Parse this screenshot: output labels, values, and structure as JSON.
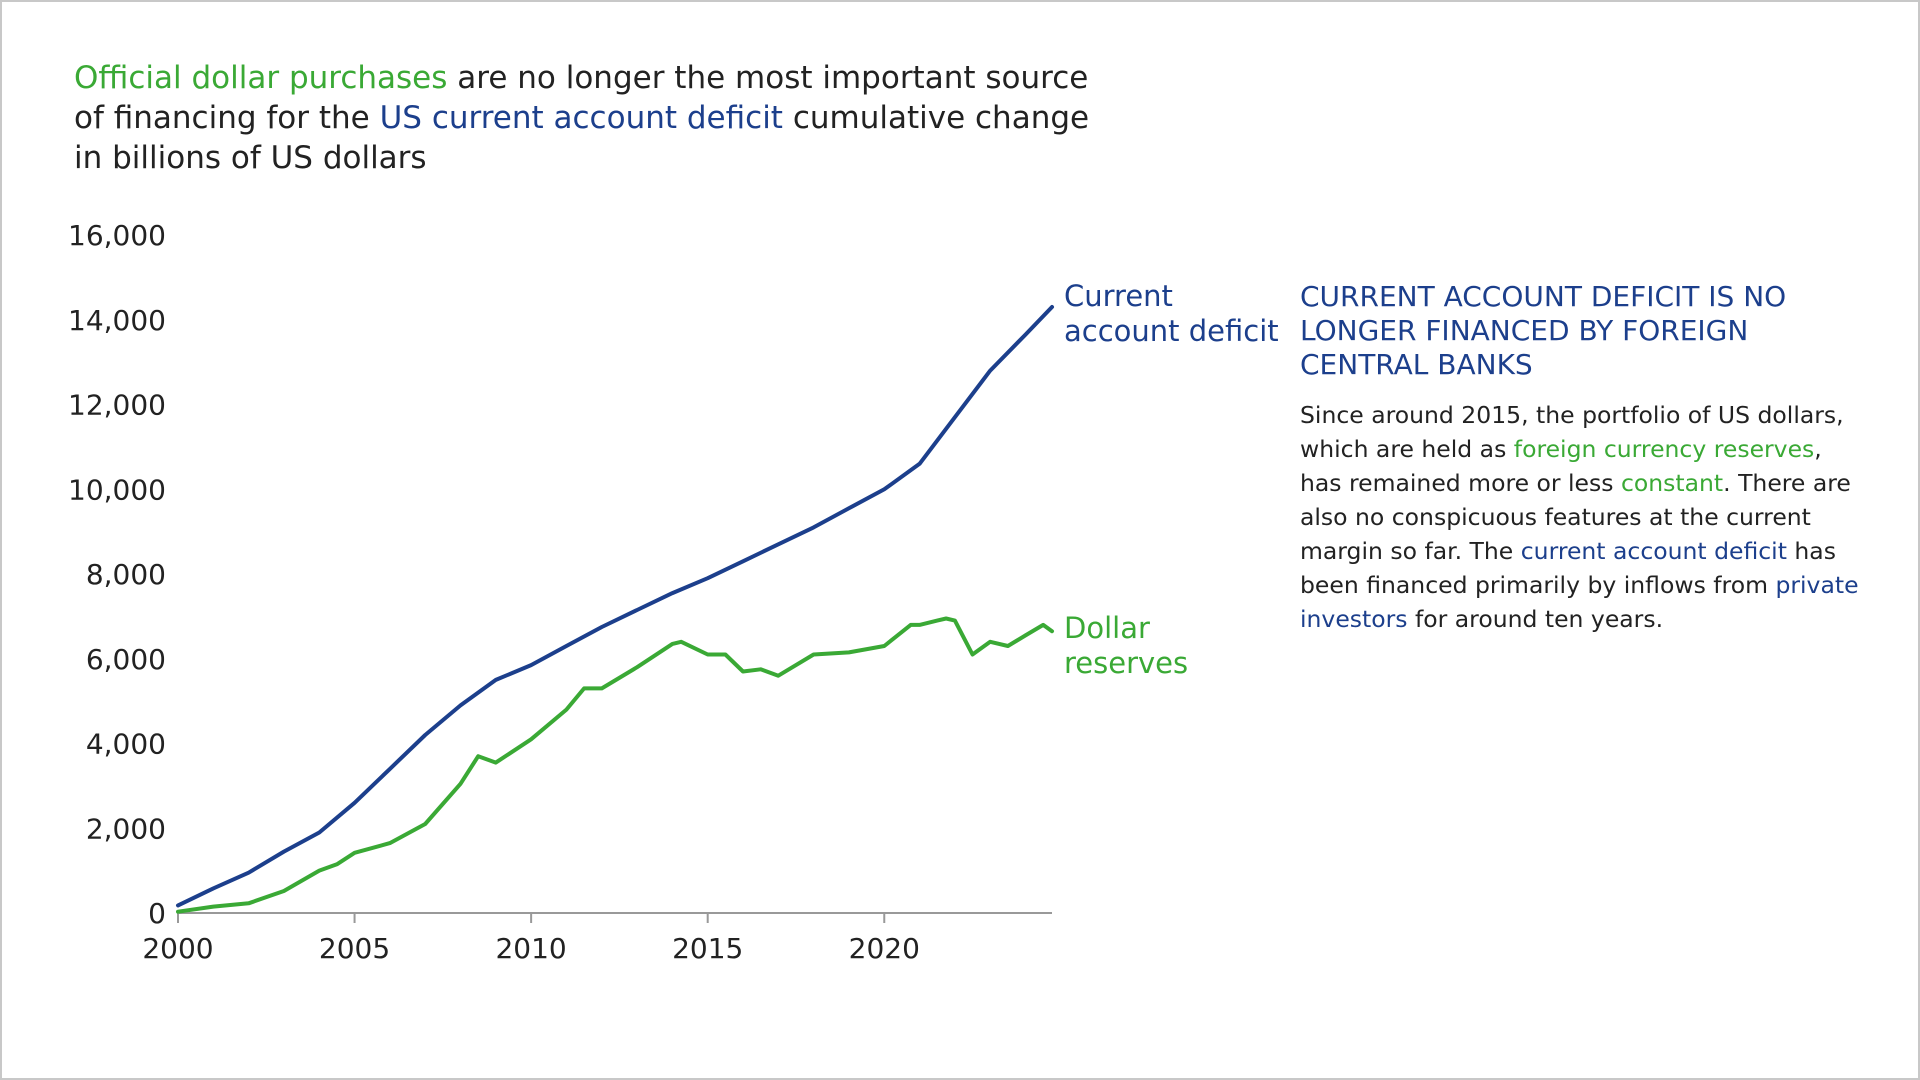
{
  "title": {
    "part1": "Official dollar purchases",
    "part2": " are no longer the most important source of financing for the ",
    "part3": "US current account deficit",
    "part4": " cumulative change in billions of US dollars"
  },
  "side_panel": {
    "heading": "CURRENT ACCOUNT DEFICIT IS NO LONGER FINANCED BY FOREIGN CENTRAL BANKS",
    "body": {
      "t1": "Since around 2015, the portfolio of US dollars, which are held as ",
      "g1": "foreign currency reserves",
      "t2": ", has remained more or less ",
      "g2": "constant",
      "t3": ". There are also no conspicuous features at the current margin so far. The ",
      "b1": "current account deficit",
      "t4": " has been financed primarily by inflows from ",
      "b2": "private investors",
      "t5": " for around ten years."
    }
  },
  "colors": {
    "deficit": "#1c3f8c",
    "reserves": "#3aa935",
    "text": "#222222",
    "axis": "#999999"
  },
  "chart_data": {
    "type": "line",
    "title": "",
    "xlabel": "",
    "ylabel": "",
    "xlim": [
      2000,
      2024.75
    ],
    "ylim": [
      0,
      16000
    ],
    "x_ticks": [
      2000,
      2005,
      2010,
      2015,
      2020
    ],
    "x_tick_labels": [
      "2000",
      "2005",
      "2010",
      "2015",
      "2020"
    ],
    "y_ticks": [
      0,
      2000,
      4000,
      6000,
      8000,
      10000,
      12000,
      14000,
      16000
    ],
    "y_tick_labels": [
      "0",
      "2,000",
      "4,000",
      "6,000",
      "8,000",
      "10,000",
      "12,000",
      "14,000",
      "16,000"
    ],
    "grid": false,
    "legend": "direct labels at line ends",
    "series": [
      {
        "name": "Current account deficit",
        "label_lines": [
          "Current",
          "account deficit"
        ],
        "color": "#1c3f8c",
        "points": [
          [
            2000,
            180
          ],
          [
            2001,
            580
          ],
          [
            2002,
            950
          ],
          [
            2003,
            1450
          ],
          [
            2004,
            1900
          ],
          [
            2005,
            2600
          ],
          [
            2006,
            3400
          ],
          [
            2007,
            4200
          ],
          [
            2008,
            4900
          ],
          [
            2009,
            5500
          ],
          [
            2010,
            5850
          ],
          [
            2011,
            6300
          ],
          [
            2012,
            6750
          ],
          [
            2013,
            7150
          ],
          [
            2014,
            7550
          ],
          [
            2015,
            7900
          ],
          [
            2016,
            8300
          ],
          [
            2017,
            8700
          ],
          [
            2018,
            9100
          ],
          [
            2019,
            9550
          ],
          [
            2020,
            10000
          ],
          [
            2021,
            10600
          ],
          [
            2022,
            11700
          ],
          [
            2023,
            12800
          ],
          [
            2024,
            13650
          ],
          [
            2024.75,
            14300
          ]
        ]
      },
      {
        "name": "Dollar reserves",
        "label_lines": [
          "Dollar",
          "reserves"
        ],
        "color": "#3aa935",
        "points": [
          [
            2000,
            30
          ],
          [
            2001,
            150
          ],
          [
            2002,
            230
          ],
          [
            2003,
            520
          ],
          [
            2004,
            1000
          ],
          [
            2004.5,
            1150
          ],
          [
            2005,
            1420
          ],
          [
            2006,
            1650
          ],
          [
            2007,
            2100
          ],
          [
            2008,
            3050
          ],
          [
            2008.5,
            3700
          ],
          [
            2009,
            3550
          ],
          [
            2010,
            4100
          ],
          [
            2011,
            4800
          ],
          [
            2011.5,
            5300
          ],
          [
            2012,
            5300
          ],
          [
            2013,
            5800
          ],
          [
            2014,
            6350
          ],
          [
            2014.25,
            6400
          ],
          [
            2015,
            6100
          ],
          [
            2015.5,
            6100
          ],
          [
            2016,
            5700
          ],
          [
            2016.5,
            5750
          ],
          [
            2017,
            5600
          ],
          [
            2018,
            6100
          ],
          [
            2019,
            6150
          ],
          [
            2020,
            6300
          ],
          [
            2020.75,
            6800
          ],
          [
            2021,
            6800
          ],
          [
            2021.5,
            6900
          ],
          [
            2021.75,
            6950
          ],
          [
            2022,
            6900
          ],
          [
            2022.5,
            6100
          ],
          [
            2023,
            6400
          ],
          [
            2023.5,
            6300
          ],
          [
            2024,
            6550
          ],
          [
            2024.5,
            6800
          ],
          [
            2024.75,
            6650
          ]
        ]
      }
    ]
  }
}
